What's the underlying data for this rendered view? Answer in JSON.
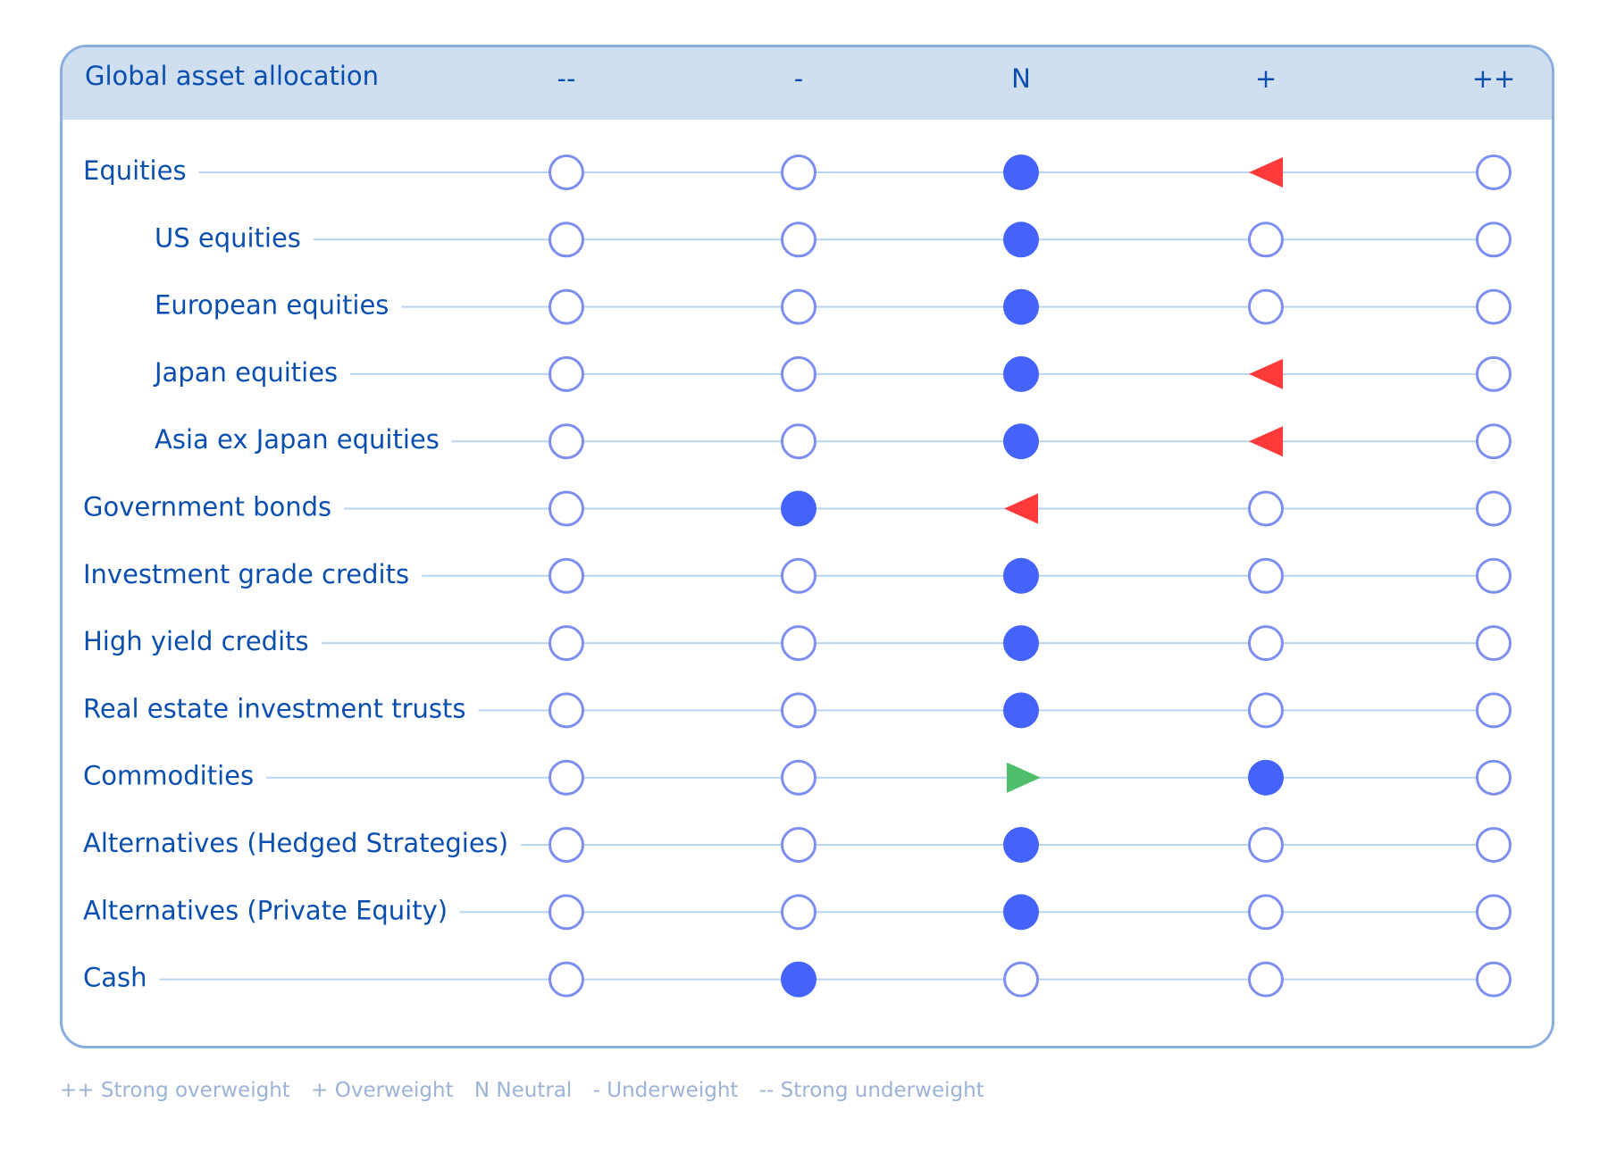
{
  "chart_data": {
    "type": "table",
    "title": "Global asset allocation",
    "columns": [
      "--",
      "-",
      "N",
      "+",
      "++"
    ],
    "rows": [
      {
        "label": "Equities",
        "indent": false,
        "position": "N",
        "arrow": {
          "column": "+",
          "direction": "left",
          "color": "#fe3a3a"
        }
      },
      {
        "label": "US equities",
        "indent": true,
        "position": "N",
        "arrow": null
      },
      {
        "label": "European equities",
        "indent": true,
        "position": "N",
        "arrow": null
      },
      {
        "label": "Japan equities",
        "indent": true,
        "position": "N",
        "arrow": {
          "column": "+",
          "direction": "left",
          "color": "#fe3a3a"
        }
      },
      {
        "label": "Asia ex Japan equities",
        "indent": true,
        "position": "N",
        "arrow": {
          "column": "+",
          "direction": "left",
          "color": "#fe3a3a"
        }
      },
      {
        "label": "Government bonds",
        "indent": false,
        "position": "-",
        "arrow": {
          "column": "N",
          "direction": "left",
          "color": "#fe3a3a"
        }
      },
      {
        "label": "Investment grade credits",
        "indent": false,
        "position": "N",
        "arrow": null
      },
      {
        "label": "High yield credits",
        "indent": false,
        "position": "N",
        "arrow": null
      },
      {
        "label": "Real estate investment trusts",
        "indent": false,
        "position": "N",
        "arrow": null
      },
      {
        "label": "Commodities",
        "indent": false,
        "position": "+",
        "arrow": {
          "column": "N",
          "direction": "right",
          "color": "#4fbf6b"
        }
      },
      {
        "label": "Alternatives (Hedged Strategies)",
        "indent": false,
        "position": "N",
        "arrow": null
      },
      {
        "label": "Alternatives (Private Equity)",
        "indent": false,
        "position": "N",
        "arrow": null
      },
      {
        "label": "Cash",
        "indent": false,
        "position": "-",
        "arrow": null
      }
    ]
  },
  "legend": [
    "++ Strong overweight",
    "+ Overweight",
    "N Neutral",
    "- Underweight",
    "-- Strong underweight"
  ],
  "colors": {
    "text": "#0a4fb0",
    "header_bg": "#cfdff0",
    "border": "#8aaede",
    "line": "#b9d3f0",
    "dot_filled": "#4363fa",
    "dot_outline": "#7c8ff0",
    "legend_text": "#9cb3d6"
  }
}
